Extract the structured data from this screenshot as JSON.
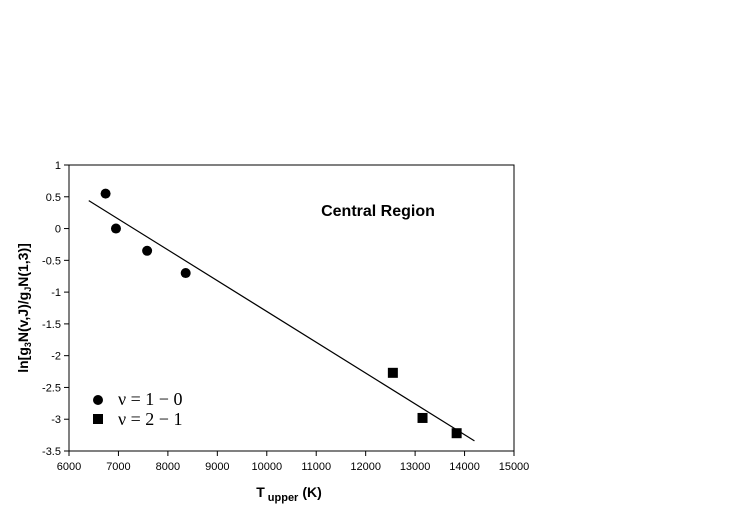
{
  "chart_data": {
    "type": "scatter",
    "title": "",
    "annotation": "Central Region",
    "xlabel": "T upper (K)",
    "xlabel_main": "T",
    "xlabel_sub": "upper",
    "xlabel_unit": "(K)",
    "ylabel": "ln[g3N(v,J)/gJN(1,3)]",
    "xlim": [
      6000,
      15000
    ],
    "ylim": [
      -3.5,
      1
    ],
    "x_ticks": [
      6000,
      7000,
      8000,
      9000,
      10000,
      11000,
      12000,
      13000,
      14000,
      15000
    ],
    "y_ticks": [
      1,
      0.5,
      0,
      -0.5,
      -1,
      -1.5,
      -2,
      -2.5,
      -3,
      -3.5
    ],
    "x_tick_labels": [
      "6000",
      "7000",
      "8000",
      "9000",
      "10000",
      "11000",
      "12000",
      "13000",
      "14000",
      "15000"
    ],
    "y_tick_labels": [
      "1",
      "0.5",
      "0",
      "-0.5",
      "-1",
      "-1.5",
      "-2",
      "-2.5",
      "-3",
      "-3.5"
    ],
    "grid": false,
    "legend_position": "bottom-left",
    "series": [
      {
        "name": "ν = 1 − 0",
        "marker": "circle",
        "color": "#000000",
        "points": [
          {
            "x": 6740,
            "y": 0.55
          },
          {
            "x": 6950,
            "y": 0.0
          },
          {
            "x": 7580,
            "y": -0.35
          },
          {
            "x": 8360,
            "y": -0.7
          }
        ]
      },
      {
        "name": "ν = 2 − 1",
        "marker": "square",
        "color": "#000000",
        "points": [
          {
            "x": 12550,
            "y": -2.27
          },
          {
            "x": 13150,
            "y": -2.98
          },
          {
            "x": 13840,
            "y": -3.22
          }
        ]
      }
    ],
    "fit_line": {
      "x": [
        6400,
        14200
      ],
      "y": [
        0.44,
        -3.34
      ],
      "color": "#000000"
    }
  }
}
